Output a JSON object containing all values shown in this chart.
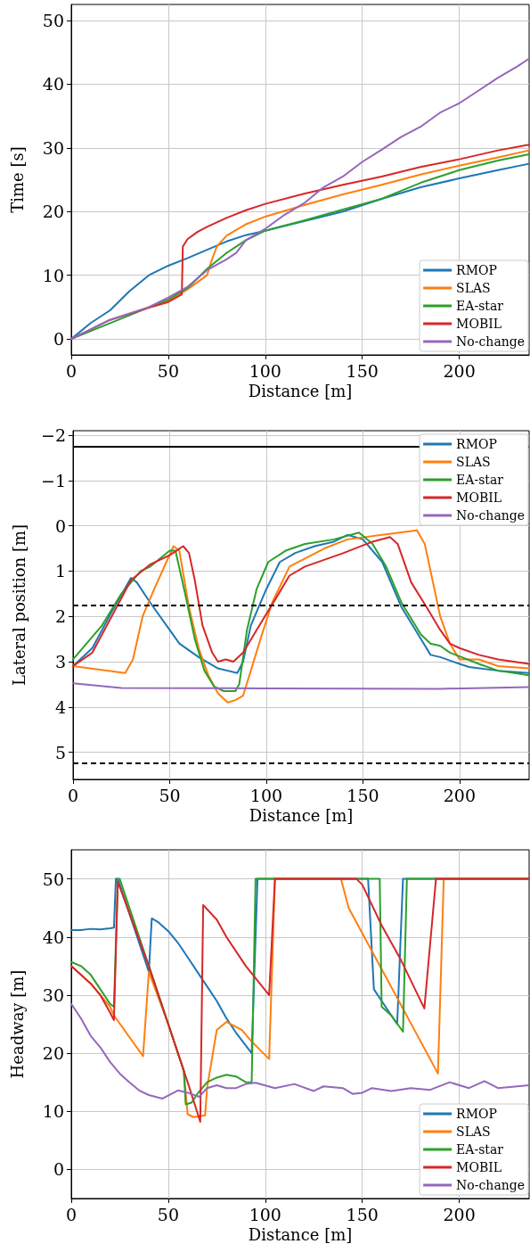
{
  "chart_data": [
    {
      "type": "line",
      "xlabel": "Distance [m]",
      "ylabel": "Time [s]",
      "xlim": [
        0,
        236
      ],
      "xticks": [
        0,
        50,
        100,
        150,
        200
      ],
      "ylim": [
        -2.5,
        52.5
      ],
      "yticks": [
        0,
        10,
        20,
        30,
        40,
        50
      ],
      "grid": true,
      "legend": "bottom right",
      "marker": "none",
      "line_style": "solid",
      "series": [
        {
          "name": "RMOP",
          "color": "#1f77b4",
          "x": [
            0,
            10,
            20,
            30,
            40,
            50,
            60,
            70,
            80,
            90,
            100,
            120,
            140,
            160,
            180,
            200,
            220,
            236
          ],
          "values": [
            0,
            2.5,
            4.5,
            7.5,
            10,
            11.5,
            12.7,
            14,
            15.3,
            16.3,
            17,
            18.5,
            20,
            22,
            23.8,
            25.2,
            26.5,
            27.5
          ]
        },
        {
          "name": "SLAS",
          "color": "#ff7f0e",
          "x": [
            40,
            50,
            60,
            70,
            72,
            75,
            80,
            90,
            100,
            120,
            140,
            160,
            180,
            200,
            220,
            236
          ],
          "values": [
            5,
            6,
            7.8,
            10,
            12,
            14.5,
            16.2,
            18,
            19.2,
            21,
            22.7,
            24.2,
            25.8,
            27.2,
            28.5,
            29.6
          ]
        },
        {
          "name": "EA-star",
          "color": "#2ca02c",
          "x": [
            0,
            50,
            60,
            70,
            80,
            90,
            100,
            120,
            140,
            160,
            180,
            200,
            220,
            236
          ],
          "values": [
            0,
            6.2,
            8,
            11,
            13.5,
            15.5,
            17,
            18.6,
            20.3,
            22,
            24.5,
            26.5,
            28,
            29
          ]
        },
        {
          "name": "MOBIL",
          "color": "#d62728",
          "x": [
            0,
            20,
            40,
            50,
            57,
            57.5,
            60,
            65,
            70,
            80,
            90,
            100,
            120,
            140,
            160,
            180,
            200,
            220,
            236
          ],
          "values": [
            0,
            3,
            4.9,
            5.8,
            7,
            14.5,
            15.7,
            16.8,
            17.6,
            19,
            20.2,
            21.2,
            22.8,
            24.2,
            25.5,
            27,
            28.2,
            29.6,
            30.5
          ]
        },
        {
          "name": "No-change",
          "color": "#9467bd",
          "x": [
            0,
            20,
            40,
            50,
            60,
            70,
            80,
            85,
            90,
            100,
            110,
            120,
            130,
            140,
            150,
            160,
            170,
            180,
            190,
            200,
            210,
            220,
            230,
            236
          ],
          "values": [
            0,
            3,
            5,
            6.5,
            8.2,
            10.8,
            12.5,
            13.5,
            15.5,
            17.3,
            19.5,
            21.3,
            23.8,
            25.5,
            27.8,
            29.7,
            31.7,
            33.3,
            35.5,
            37,
            39,
            41,
            42.8,
            44
          ]
        }
      ]
    },
    {
      "type": "line",
      "xlabel": "Distance [m]",
      "ylabel": "Lateral position [m]",
      "xlim": [
        0,
        236
      ],
      "xticks": [
        0,
        50,
        100,
        150,
        200
      ],
      "ylim": [
        5.6,
        -2.1
      ],
      "yticks": [
        {
          "value": -2,
          "label": "−2"
        },
        {
          "value": -1,
          "label": "−1"
        },
        0,
        1,
        2,
        3,
        4,
        5
      ],
      "grid": true,
      "legend": "top right",
      "marker": "none",
      "line_style": "solid",
      "ref_lines": [
        {
          "axis": "y",
          "value": -1.75,
          "color": "#000000",
          "line_style": "solid"
        },
        {
          "axis": "y",
          "value": 1.75,
          "color": "#000000",
          "line_style": "dashed"
        },
        {
          "axis": "y",
          "value": 5.25,
          "color": "#000000",
          "line_style": "dashed"
        }
      ],
      "series": [
        {
          "name": "RMOP",
          "color": "#1f77b4",
          "x": [
            0,
            10,
            20,
            30,
            33,
            40,
            50,
            55,
            65,
            75,
            85,
            88,
            92,
            100,
            107,
            115,
            125,
            135,
            142,
            150,
            160,
            170,
            180,
            185,
            190,
            200,
            205,
            220,
            236
          ],
          "values": [
            3.1,
            2.7,
            1.9,
            1.15,
            1.25,
            1.7,
            2.3,
            2.6,
            2.9,
            3.15,
            3.25,
            3.0,
            2.2,
            1.4,
            0.8,
            0.6,
            0.45,
            0.35,
            0.2,
            0.3,
            0.8,
            1.8,
            2.5,
            2.85,
            2.9,
            3.05,
            3.12,
            3.2,
            3.25
          ]
        },
        {
          "name": "SLAS",
          "color": "#ff7f0e",
          "x": [
            0,
            27,
            31,
            36,
            42,
            52,
            55,
            60,
            65,
            70,
            75,
            80,
            84,
            88,
            92,
            97,
            103,
            112,
            130,
            142,
            160,
            178,
            182,
            186,
            190,
            195,
            200,
            210,
            220,
            236
          ],
          "values": [
            3.1,
            3.25,
            2.95,
            2.0,
            1.4,
            0.45,
            0.55,
            1.8,
            2.7,
            3.3,
            3.7,
            3.9,
            3.85,
            3.75,
            3.2,
            2.5,
            1.7,
            0.9,
            0.5,
            0.3,
            0.2,
            0.1,
            0.4,
            1.2,
            2.0,
            2.6,
            2.95,
            2.95,
            3.1,
            3.15
          ]
        },
        {
          "name": "EA-star",
          "color": "#2ca02c",
          "x": [
            0,
            15,
            25,
            35,
            40,
            50,
            53,
            58,
            63,
            68,
            73,
            78,
            84,
            86,
            90,
            95,
            101,
            110,
            120,
            135,
            148,
            155,
            162,
            170,
            180,
            185,
            190,
            195,
            210,
            220,
            236
          ],
          "values": [
            2.95,
            2.2,
            1.5,
            1.0,
            0.9,
            0.55,
            0.55,
            1.5,
            2.5,
            3.2,
            3.55,
            3.65,
            3.65,
            3.5,
            2.3,
            1.4,
            0.8,
            0.55,
            0.4,
            0.3,
            0.15,
            0.4,
            0.9,
            1.7,
            2.4,
            2.6,
            2.65,
            2.8,
            3.05,
            3.2,
            3.3
          ]
        },
        {
          "name": "MOBIL",
          "color": "#d62728",
          "x": [
            0,
            10,
            20,
            30,
            40,
            50,
            57,
            60,
            63,
            67,
            72,
            75,
            79,
            83,
            88,
            95,
            105,
            112,
            120,
            140,
            155,
            164,
            168,
            175,
            183,
            190,
            195,
            200,
            210,
            220,
            236
          ],
          "values": [
            3.1,
            2.8,
            2.0,
            1.2,
            0.85,
            0.65,
            0.45,
            0.6,
            1.2,
            2.2,
            2.8,
            3.0,
            2.95,
            3.0,
            2.8,
            2.3,
            1.6,
            1.1,
            0.9,
            0.6,
            0.35,
            0.25,
            0.4,
            1.25,
            1.8,
            2.3,
            2.6,
            2.7,
            2.85,
            2.95,
            3.05
          ]
        },
        {
          "name": "No-change",
          "color": "#9467bd",
          "x": [
            0,
            25,
            100,
            190,
            236
          ],
          "values": [
            3.48,
            3.58,
            3.59,
            3.6,
            3.56
          ]
        }
      ]
    },
    {
      "type": "line",
      "xlabel": "Distance [m]",
      "ylabel": "Headway [m]",
      "xlim": [
        0,
        236
      ],
      "xticks": [
        0,
        50,
        100,
        150,
        200
      ],
      "ylim": [
        -5,
        55
      ],
      "yticks": [
        0,
        10,
        20,
        30,
        40,
        50
      ],
      "grid": true,
      "legend": "bottom right",
      "marker": "none",
      "line_style": "solid",
      "series": [
        {
          "name": "RMOP",
          "color": "#1f77b4",
          "x": [
            0,
            5,
            10,
            15,
            20,
            22,
            23,
            24,
            40,
            41.5,
            45,
            50,
            55,
            60,
            65,
            70,
            75,
            80,
            85,
            93,
            96,
            153,
            156,
            160,
            168,
            171,
            236
          ],
          "values": [
            41.2,
            41.2,
            41.4,
            41.3,
            41.5,
            41.6,
            50,
            50,
            34,
            43.2,
            42.5,
            41,
            39,
            36.5,
            34,
            31.5,
            29,
            26,
            23.5,
            20,
            50,
            50,
            31,
            29,
            25,
            50,
            50
          ]
        },
        {
          "name": "SLAS",
          "color": "#ff7f0e",
          "x": [
            0,
            10,
            20,
            22,
            37,
            40,
            50,
            58,
            60,
            63,
            69,
            70,
            75,
            80,
            88,
            93,
            102,
            105,
            139,
            143,
            189,
            192,
            236
          ],
          "values": [
            35,
            32,
            28,
            26.5,
            19.5,
            34,
            25,
            17,
            9.5,
            9,
            9.3,
            14,
            24,
            25.4,
            24,
            22,
            19,
            50,
            50,
            45,
            16.5,
            50,
            50
          ]
        },
        {
          "name": "EA-star",
          "color": "#2ca02c",
          "x": [
            0,
            5,
            10,
            15,
            20,
            22,
            24,
            25,
            40,
            58,
            59,
            62,
            65,
            70,
            75,
            80,
            85,
            90,
            93,
            95,
            159,
            160,
            165,
            171,
            173,
            236
          ],
          "values": [
            35.7,
            35,
            33.5,
            31,
            28.5,
            28,
            50,
            50,
            35,
            17,
            11.2,
            11.5,
            13,
            15,
            15.8,
            16.3,
            16,
            15,
            15,
            50,
            50,
            28,
            26.5,
            23.7,
            50,
            50
          ]
        },
        {
          "name": "MOBIL",
          "color": "#d62728",
          "x": [
            0,
            10,
            15,
            20,
            22,
            24,
            40,
            50,
            60,
            66.5,
            68,
            75,
            80,
            90,
            102,
            105,
            147,
            150,
            160,
            170,
            182,
            188,
            236
          ],
          "values": [
            35,
            32,
            30,
            27,
            25.7,
            49.5,
            35,
            25,
            15,
            8.2,
            45.5,
            43,
            40,
            35,
            30,
            50,
            50,
            49,
            42,
            36,
            27.7,
            50,
            50
          ]
        },
        {
          "name": "No-change",
          "color": "#9467bd",
          "x": [
            0,
            5,
            10,
            15,
            20,
            25,
            30,
            35,
            40,
            47,
            55,
            60,
            66,
            70,
            75,
            80,
            85,
            90,
            95,
            105,
            115,
            125,
            130,
            140,
            145,
            150,
            155,
            165,
            175,
            185,
            195,
            205,
            213,
            220,
            236
          ],
          "values": [
            28.5,
            26,
            23,
            21,
            18.5,
            16.5,
            15,
            13.6,
            12.8,
            12.2,
            13.6,
            13.2,
            12.5,
            14,
            14.5,
            14,
            14,
            14.7,
            14.9,
            14,
            14.7,
            13.5,
            14.3,
            14,
            13,
            13.2,
            14,
            13.5,
            14,
            13.7,
            15,
            14,
            15.2,
            14,
            14.5
          ]
        }
      ]
    }
  ]
}
